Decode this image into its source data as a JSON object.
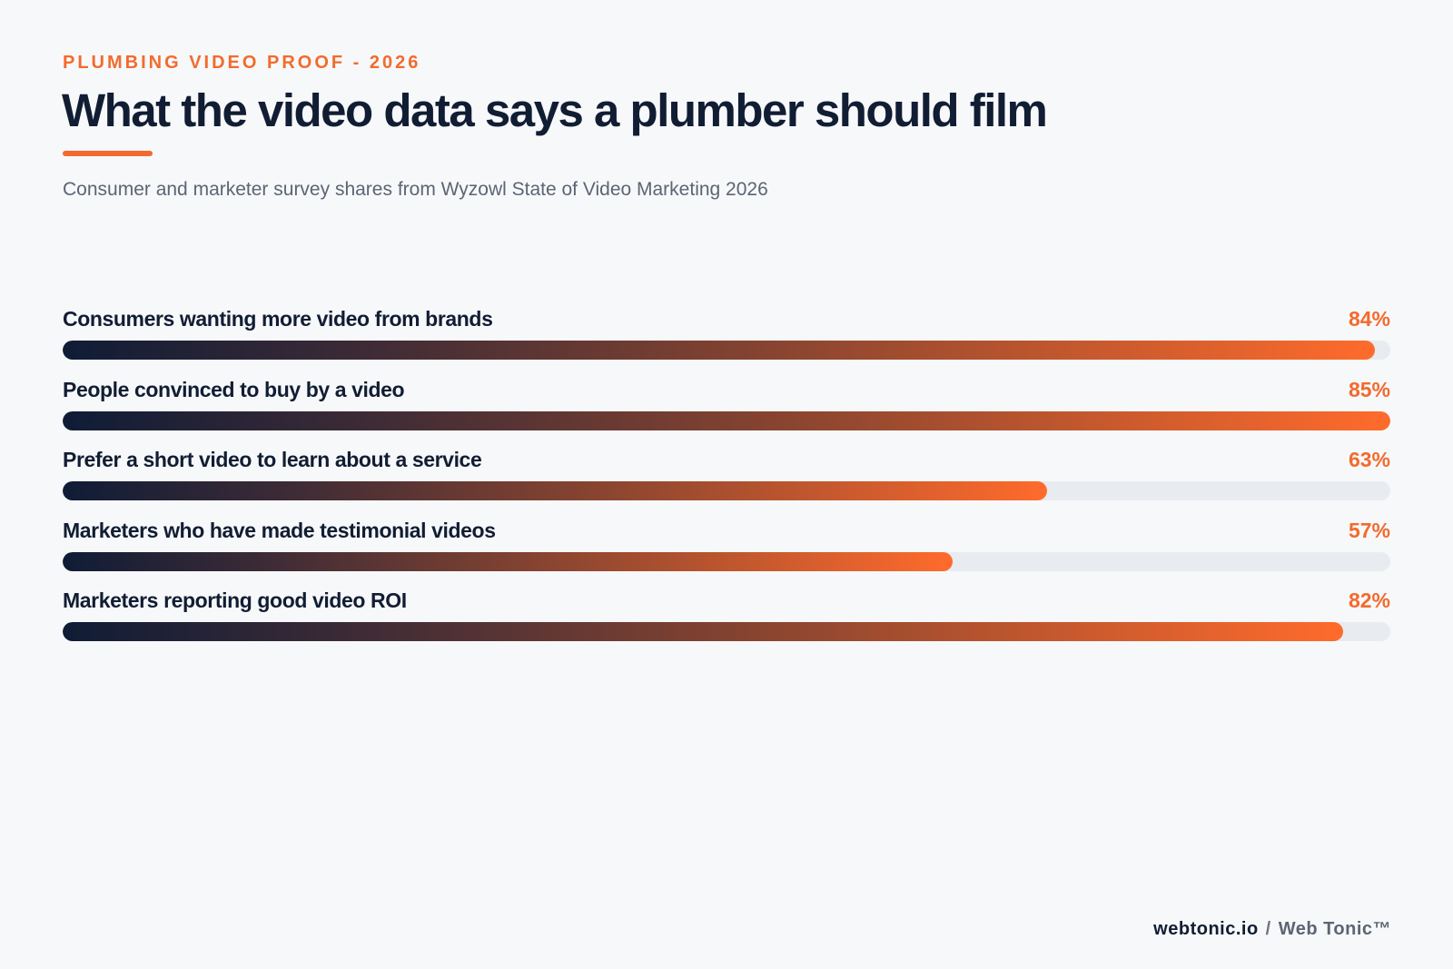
{
  "header": {
    "eyebrow": "PLUMBING VIDEO PROOF - 2026",
    "title": "What the video data says a plumber should film",
    "subtitle": "Consumer and marketer survey shares from Wyzowl State of Video Marketing 2026"
  },
  "chart_data": {
    "type": "bar",
    "orientation": "horizontal",
    "title": "What the video data says a plumber should film",
    "subtitle": "Consumer and marketer survey shares from Wyzowl State of Video Marketing 2026",
    "xlim": [
      0,
      85
    ],
    "grid": false,
    "categories": [
      "Consumers wanting more video from brands",
      "People convinced to buy by a video",
      "Prefer a short video to learn about a service",
      "Marketers who have made testimonial videos",
      "Marketers reporting good video ROI"
    ],
    "values": [
      84,
      85,
      63,
      57,
      82
    ],
    "value_labels": [
      "84%",
      "85%",
      "63%",
      "57%",
      "82%"
    ],
    "colors": {
      "accent": "#f26b2d",
      "gradient_start": "#0f1c36",
      "gradient_end": "#ff6b2c",
      "track": "#e8ebf0"
    }
  },
  "footer": {
    "site": "webtonic.io",
    "separator": "/",
    "brand": "Web Tonic™"
  }
}
